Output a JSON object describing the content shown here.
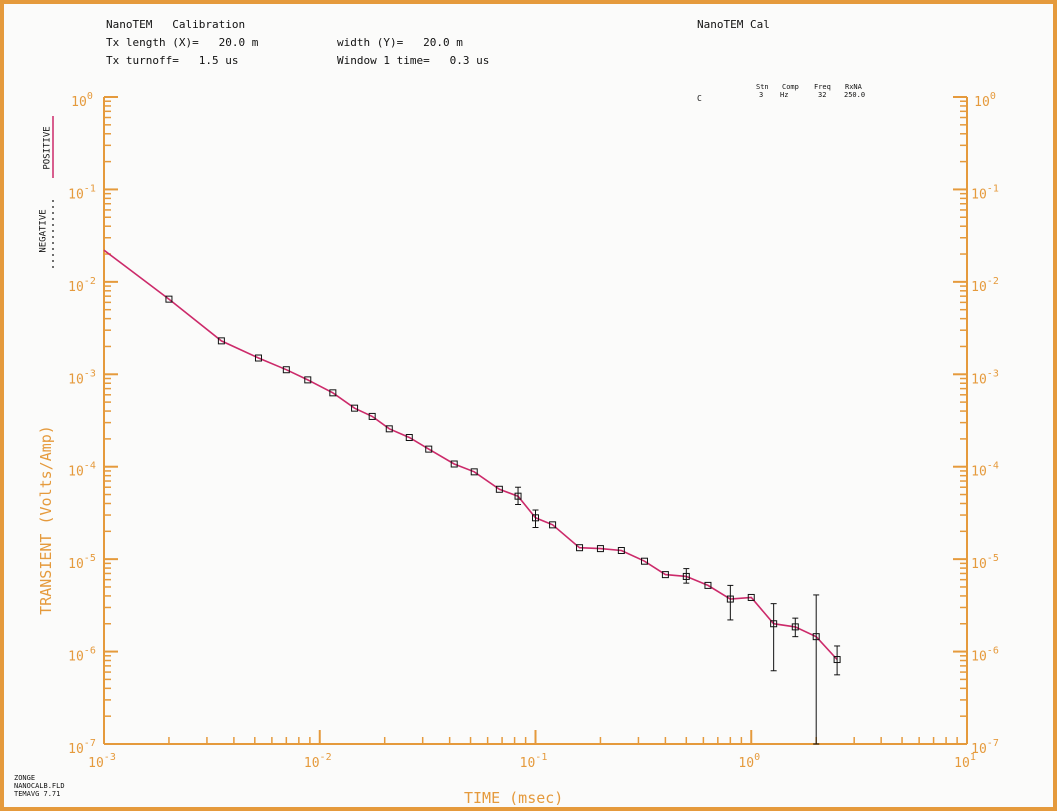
{
  "header": {
    "title": "NanoTEM   Calibration",
    "line2_left": "Tx length (X)=   20.0 m",
    "line2_right": "width (Y)=   20.0 m",
    "line3_left": "Tx turnoff=   1.5 us",
    "line3_right": "Window 1 time=   0.3 us",
    "right_title": "NanoTEM Cal"
  },
  "station_table": {
    "headers": [
      "Stn",
      "Comp",
      "Freq",
      "RxNA"
    ],
    "row_label": "C",
    "values": [
      "3",
      "Hz",
      "32",
      "250.0"
    ]
  },
  "legend": {
    "positive": "POSITIVE",
    "negative": "NEGATIVE"
  },
  "footer": {
    "line1": "ZONGE",
    "line2": "NANOCALB.FLD",
    "line3": "TEMAVG 7.71"
  },
  "colors": {
    "axis": "#e59a3c",
    "curve": "#cc2a6a",
    "frame": "#e59a3c",
    "data_marks": "#111111"
  },
  "chart_data": {
    "type": "scatter",
    "xscale": "log",
    "yscale": "log",
    "xlabel": "TIME (msec)",
    "ylabel": "TRANSIENT (Volts/Amp)",
    "xlim": [
      0.001,
      10
    ],
    "ylim": [
      1e-07,
      1
    ],
    "x_ticks": [
      0.001,
      0.01,
      0.1,
      1,
      10
    ],
    "y_ticks": [
      1,
      0.1,
      0.01,
      0.001,
      0.0001,
      1e-05,
      1e-06,
      1e-07
    ],
    "tick_bases": [
      "10",
      "10",
      "10",
      "10",
      "10",
      "10",
      "10",
      "10"
    ],
    "x_tick_exponents": [
      "-3",
      "-2",
      "-1",
      "0",
      "1"
    ],
    "y_tick_exponents": [
      "0",
      "-1",
      "-2",
      "-3",
      "-4",
      "-5",
      "-6",
      "-7"
    ],
    "grid": false,
    "series": [
      {
        "name": "POSITIVE",
        "style": "line",
        "x": [
          0.001,
          0.002,
          0.0035,
          0.0052,
          0.007,
          0.0088,
          0.0115,
          0.0145,
          0.0175,
          0.021,
          0.026,
          0.032,
          0.042,
          0.052,
          0.068,
          0.083,
          0.1,
          0.12,
          0.16,
          0.2,
          0.25,
          0.32,
          0.4,
          0.5,
          0.63,
          0.8,
          1.0,
          1.27,
          1.6,
          2.0,
          2.5
        ],
        "y": [
          0.022,
          0.0065,
          0.0023,
          0.0015,
          0.00112,
          0.00087,
          0.00063,
          0.00043,
          0.00035,
          0.000257,
          0.000207,
          0.000155,
          0.000107,
          8.8e-05,
          5.7e-05,
          4.8e-05,
          2.8e-05,
          2.35e-05,
          1.33e-05,
          1.3e-05,
          1.24e-05,
          9.5e-06,
          6.8e-06,
          6.5e-06,
          5.2e-06,
          3.7e-06,
          3.85e-06,
          2e-06,
          1.85e-06,
          1.45e-06,
          8.2e-07
        ]
      }
    ],
    "measurements": {
      "x": [
        0.002,
        0.0035,
        0.0052,
        0.007,
        0.0088,
        0.0115,
        0.0145,
        0.0175,
        0.021,
        0.026,
        0.032,
        0.042,
        0.052,
        0.068,
        0.083,
        0.1,
        0.12,
        0.16,
        0.2,
        0.25,
        0.32,
        0.4,
        0.5,
        0.63,
        0.8,
        1.0,
        1.27,
        1.6,
        2.0,
        2.5
      ],
      "y": [
        0.0065,
        0.0023,
        0.0015,
        0.00112,
        0.00087,
        0.00063,
        0.00043,
        0.00035,
        0.000257,
        0.000207,
        0.000155,
        0.000107,
        8.8e-05,
        5.7e-05,
        4.8e-05,
        2.8e-05,
        2.35e-05,
        1.33e-05,
        1.3e-05,
        1.24e-05,
        9.5e-06,
        6.8e-06,
        6.5e-06,
        5.2e-06,
        3.7e-06,
        3.85e-06,
        2e-06,
        1.85e-06,
        1.45e-06,
        8.2e-07
      ],
      "y_low": [
        0.0065,
        0.0023,
        0.0015,
        0.00112,
        0.00087,
        0.00063,
        0.00043,
        0.00035,
        0.000257,
        0.000207,
        0.000155,
        0.000107,
        8.8e-05,
        5.7e-05,
        3.9e-05,
        2.2e-05,
        2.35e-05,
        1.33e-05,
        1.3e-05,
        1.24e-05,
        9.5e-06,
        6.8e-06,
        5.5e-06,
        5.2e-06,
        2.2e-06,
        3.85e-06,
        6.2e-07,
        1.45e-06,
        1e-07,
        5.6e-07
      ],
      "y_high": [
        0.0065,
        0.0023,
        0.0015,
        0.00112,
        0.00087,
        0.00063,
        0.00043,
        0.00035,
        0.000257,
        0.000207,
        0.000155,
        0.000107,
        8.8e-05,
        5.7e-05,
        6e-05,
        3.4e-05,
        2.35e-05,
        1.33e-05,
        1.3e-05,
        1.24e-05,
        9.5e-06,
        6.8e-06,
        7.9e-06,
        5.2e-06,
        5.2e-06,
        3.85e-06,
        3.3e-06,
        2.3e-06,
        4.1e-06,
        1.15e-06
      ]
    }
  }
}
